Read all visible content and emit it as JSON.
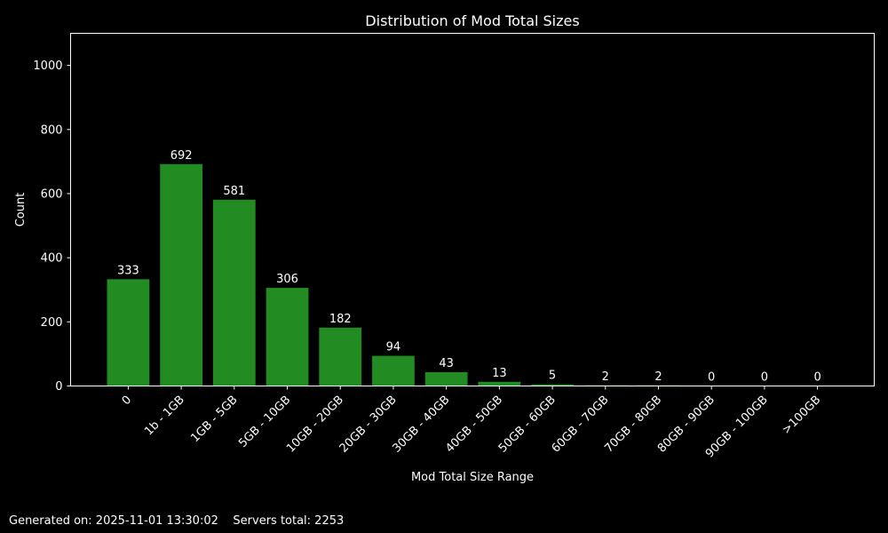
{
  "chart_data": {
    "type": "bar",
    "title": "Distribution of Mod Total Sizes",
    "xlabel": "Mod Total Size Range",
    "ylabel": "Count",
    "categories": [
      "0",
      "1b - 1GB",
      "1GB - 5GB",
      "5GB - 10GB",
      "10GB - 20GB",
      "20GB - 30GB",
      "30GB - 40GB",
      "40GB - 50GB",
      "50GB - 60GB",
      "60GB - 70GB",
      "70GB - 80GB",
      "80GB - 90GB",
      "90GB - 100GB",
      ">100GB"
    ],
    "values": [
      333,
      692,
      581,
      306,
      182,
      94,
      43,
      13,
      5,
      2,
      2,
      0,
      0,
      0
    ],
    "ylim": [
      0,
      1100
    ],
    "yticks": [
      0,
      200,
      400,
      600,
      800,
      1000
    ],
    "grid": false,
    "bar_color": "#228b22",
    "background": "#000000",
    "data_labels": true
  },
  "footer": {
    "generated": "Generated on: 2025-11-01 13:30:02",
    "servers_total": "Servers total: 2253"
  }
}
